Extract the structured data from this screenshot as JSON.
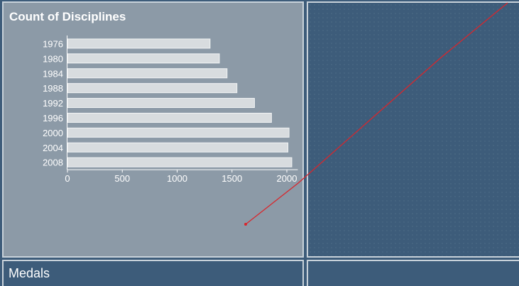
{
  "chart_panel": {
    "title": "Count of Disciplines"
  },
  "bottom_panel": {
    "title": "Medals"
  },
  "chart_data": {
    "type": "bar",
    "orientation": "horizontal",
    "title": "Count of Disciplines",
    "categories": [
      "1976",
      "1980",
      "1984",
      "1988",
      "1992",
      "1996",
      "2000",
      "2004",
      "2008"
    ],
    "values": [
      1300,
      1385,
      1455,
      1545,
      1705,
      1860,
      2020,
      2010,
      2045
    ],
    "xlim": [
      0,
      2100
    ],
    "xticks": [
      0,
      500,
      1000,
      1500,
      2000
    ],
    "xlabel": "",
    "ylabel": "",
    "grid": false,
    "colors": {
      "bar": "#d8dcdf",
      "panel": "#8c9aa7",
      "background": "#3d5c7a",
      "annotation_line": "#d9262c"
    }
  },
  "annotation": {
    "type": "red-line"
  }
}
